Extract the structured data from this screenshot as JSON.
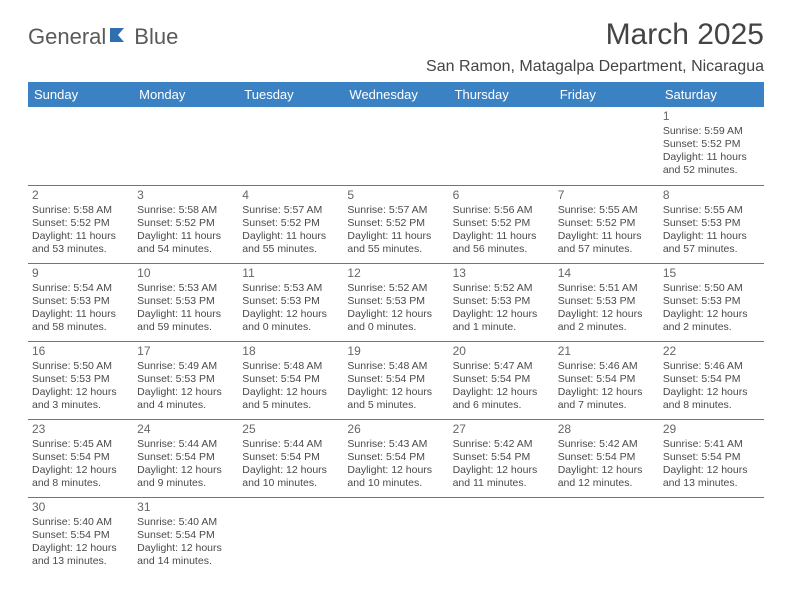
{
  "logo": {
    "text_a": "General",
    "text_b": "Blue",
    "icon_color": "#2f6fb0"
  },
  "title": "March 2025",
  "location": "San Ramon, Matagalpa Department, Nicaragua",
  "colors": {
    "header_bg": "#3b82c4",
    "header_fg": "#ffffff",
    "row_border": "#3b82c4",
    "text": "#4a4a4a",
    "title_text": "#444444"
  },
  "typography": {
    "title_fontsize": 30,
    "location_fontsize": 16,
    "weekday_fontsize": 13,
    "cell_fontsize": 10.5,
    "daynum_fontsize": 12
  },
  "weekdays": [
    "Sunday",
    "Monday",
    "Tuesday",
    "Wednesday",
    "Thursday",
    "Friday",
    "Saturday"
  ],
  "weeks": [
    [
      null,
      null,
      null,
      null,
      null,
      null,
      {
        "n": "1",
        "sunrise": "Sunrise: 5:59 AM",
        "sunset": "Sunset: 5:52 PM",
        "d1": "Daylight: 11 hours",
        "d2": "and 52 minutes."
      }
    ],
    [
      {
        "n": "2",
        "sunrise": "Sunrise: 5:58 AM",
        "sunset": "Sunset: 5:52 PM",
        "d1": "Daylight: 11 hours",
        "d2": "and 53 minutes."
      },
      {
        "n": "3",
        "sunrise": "Sunrise: 5:58 AM",
        "sunset": "Sunset: 5:52 PM",
        "d1": "Daylight: 11 hours",
        "d2": "and 54 minutes."
      },
      {
        "n": "4",
        "sunrise": "Sunrise: 5:57 AM",
        "sunset": "Sunset: 5:52 PM",
        "d1": "Daylight: 11 hours",
        "d2": "and 55 minutes."
      },
      {
        "n": "5",
        "sunrise": "Sunrise: 5:57 AM",
        "sunset": "Sunset: 5:52 PM",
        "d1": "Daylight: 11 hours",
        "d2": "and 55 minutes."
      },
      {
        "n": "6",
        "sunrise": "Sunrise: 5:56 AM",
        "sunset": "Sunset: 5:52 PM",
        "d1": "Daylight: 11 hours",
        "d2": "and 56 minutes."
      },
      {
        "n": "7",
        "sunrise": "Sunrise: 5:55 AM",
        "sunset": "Sunset: 5:52 PM",
        "d1": "Daylight: 11 hours",
        "d2": "and 57 minutes."
      },
      {
        "n": "8",
        "sunrise": "Sunrise: 5:55 AM",
        "sunset": "Sunset: 5:53 PM",
        "d1": "Daylight: 11 hours",
        "d2": "and 57 minutes."
      }
    ],
    [
      {
        "n": "9",
        "sunrise": "Sunrise: 5:54 AM",
        "sunset": "Sunset: 5:53 PM",
        "d1": "Daylight: 11 hours",
        "d2": "and 58 minutes."
      },
      {
        "n": "10",
        "sunrise": "Sunrise: 5:53 AM",
        "sunset": "Sunset: 5:53 PM",
        "d1": "Daylight: 11 hours",
        "d2": "and 59 minutes."
      },
      {
        "n": "11",
        "sunrise": "Sunrise: 5:53 AM",
        "sunset": "Sunset: 5:53 PM",
        "d1": "Daylight: 12 hours",
        "d2": "and 0 minutes."
      },
      {
        "n": "12",
        "sunrise": "Sunrise: 5:52 AM",
        "sunset": "Sunset: 5:53 PM",
        "d1": "Daylight: 12 hours",
        "d2": "and 0 minutes."
      },
      {
        "n": "13",
        "sunrise": "Sunrise: 5:52 AM",
        "sunset": "Sunset: 5:53 PM",
        "d1": "Daylight: 12 hours",
        "d2": "and 1 minute."
      },
      {
        "n": "14",
        "sunrise": "Sunrise: 5:51 AM",
        "sunset": "Sunset: 5:53 PM",
        "d1": "Daylight: 12 hours",
        "d2": "and 2 minutes."
      },
      {
        "n": "15",
        "sunrise": "Sunrise: 5:50 AM",
        "sunset": "Sunset: 5:53 PM",
        "d1": "Daylight: 12 hours",
        "d2": "and 2 minutes."
      }
    ],
    [
      {
        "n": "16",
        "sunrise": "Sunrise: 5:50 AM",
        "sunset": "Sunset: 5:53 PM",
        "d1": "Daylight: 12 hours",
        "d2": "and 3 minutes."
      },
      {
        "n": "17",
        "sunrise": "Sunrise: 5:49 AM",
        "sunset": "Sunset: 5:53 PM",
        "d1": "Daylight: 12 hours",
        "d2": "and 4 minutes."
      },
      {
        "n": "18",
        "sunrise": "Sunrise: 5:48 AM",
        "sunset": "Sunset: 5:54 PM",
        "d1": "Daylight: 12 hours",
        "d2": "and 5 minutes."
      },
      {
        "n": "19",
        "sunrise": "Sunrise: 5:48 AM",
        "sunset": "Sunset: 5:54 PM",
        "d1": "Daylight: 12 hours",
        "d2": "and 5 minutes."
      },
      {
        "n": "20",
        "sunrise": "Sunrise: 5:47 AM",
        "sunset": "Sunset: 5:54 PM",
        "d1": "Daylight: 12 hours",
        "d2": "and 6 minutes."
      },
      {
        "n": "21",
        "sunrise": "Sunrise: 5:46 AM",
        "sunset": "Sunset: 5:54 PM",
        "d1": "Daylight: 12 hours",
        "d2": "and 7 minutes."
      },
      {
        "n": "22",
        "sunrise": "Sunrise: 5:46 AM",
        "sunset": "Sunset: 5:54 PM",
        "d1": "Daylight: 12 hours",
        "d2": "and 8 minutes."
      }
    ],
    [
      {
        "n": "23",
        "sunrise": "Sunrise: 5:45 AM",
        "sunset": "Sunset: 5:54 PM",
        "d1": "Daylight: 12 hours",
        "d2": "and 8 minutes."
      },
      {
        "n": "24",
        "sunrise": "Sunrise: 5:44 AM",
        "sunset": "Sunset: 5:54 PM",
        "d1": "Daylight: 12 hours",
        "d2": "and 9 minutes."
      },
      {
        "n": "25",
        "sunrise": "Sunrise: 5:44 AM",
        "sunset": "Sunset: 5:54 PM",
        "d1": "Daylight: 12 hours",
        "d2": "and 10 minutes."
      },
      {
        "n": "26",
        "sunrise": "Sunrise: 5:43 AM",
        "sunset": "Sunset: 5:54 PM",
        "d1": "Daylight: 12 hours",
        "d2": "and 10 minutes."
      },
      {
        "n": "27",
        "sunrise": "Sunrise: 5:42 AM",
        "sunset": "Sunset: 5:54 PM",
        "d1": "Daylight: 12 hours",
        "d2": "and 11 minutes."
      },
      {
        "n": "28",
        "sunrise": "Sunrise: 5:42 AM",
        "sunset": "Sunset: 5:54 PM",
        "d1": "Daylight: 12 hours",
        "d2": "and 12 minutes."
      },
      {
        "n": "29",
        "sunrise": "Sunrise: 5:41 AM",
        "sunset": "Sunset: 5:54 PM",
        "d1": "Daylight: 12 hours",
        "d2": "and 13 minutes."
      }
    ],
    [
      {
        "n": "30",
        "sunrise": "Sunrise: 5:40 AM",
        "sunset": "Sunset: 5:54 PM",
        "d1": "Daylight: 12 hours",
        "d2": "and 13 minutes."
      },
      {
        "n": "31",
        "sunrise": "Sunrise: 5:40 AM",
        "sunset": "Sunset: 5:54 PM",
        "d1": "Daylight: 12 hours",
        "d2": "and 14 minutes."
      },
      null,
      null,
      null,
      null,
      null
    ]
  ]
}
